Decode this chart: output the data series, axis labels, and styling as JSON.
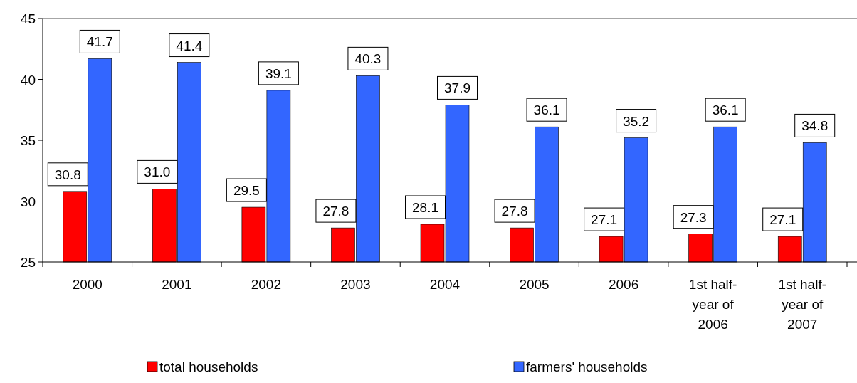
{
  "chart_data": {
    "type": "bar",
    "categories": [
      "2000",
      "2001",
      "2002",
      "2003",
      "2004",
      "2005",
      "2006",
      "1st half-year of 2006",
      "1st half-year of 2007"
    ],
    "series": [
      {
        "name": "total households",
        "color": "#ff0000",
        "values": [
          30.8,
          31.0,
          29.5,
          27.8,
          28.1,
          27.8,
          27.1,
          27.3,
          27.1
        ]
      },
      {
        "name": "farmers' households",
        "color": "#3366ff",
        "values": [
          41.7,
          41.4,
          39.1,
          40.3,
          37.9,
          36.1,
          35.2,
          36.1,
          34.8
        ]
      }
    ],
    "value_labels": [
      [
        "30.8",
        "31.0",
        "29.5",
        "27.8",
        "28.1",
        "27.8",
        "27.1",
        "27.3",
        "27.1"
      ],
      [
        "41.7",
        "41.4",
        "39.1",
        "40.3",
        "37.9",
        "36.1",
        "35.2",
        "36.1",
        "34.8"
      ]
    ],
    "ylim": [
      25,
      45
    ],
    "yticks": [
      25,
      30,
      35,
      40,
      45
    ],
    "grid": false,
    "legend": "bottom"
  }
}
